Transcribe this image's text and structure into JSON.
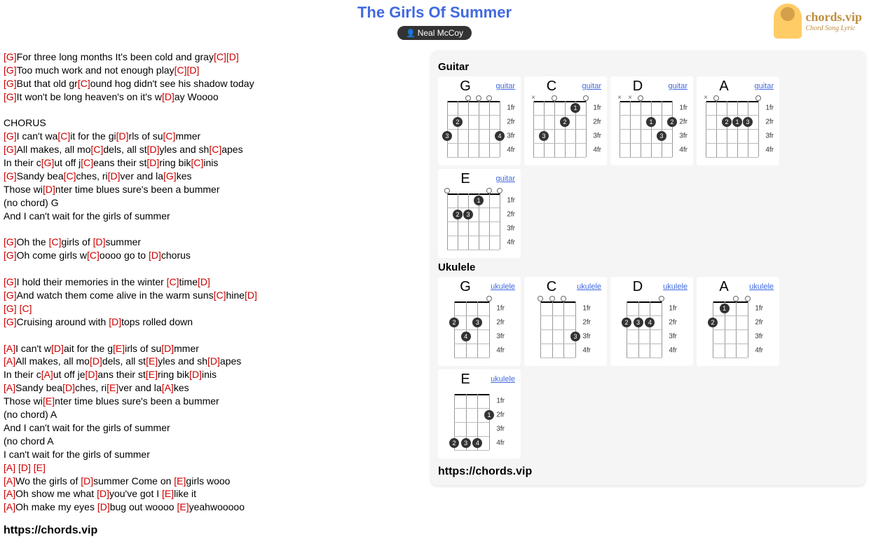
{
  "title": "The Girls Of Summer",
  "artist": "Neal McCoy",
  "logo": {
    "main": "chords.vip",
    "sub": "Chord Song Lyric"
  },
  "url": "https://chords.vip",
  "sections": {
    "guitar": "Guitar",
    "ukulele": "Ukulele"
  },
  "guitar_chords": [
    {
      "name": "G",
      "type": "guitar",
      "strings": 6,
      "markers": [
        {
          "s": 0,
          "f": 3,
          "n": "3"
        },
        {
          "s": 1,
          "f": 2,
          "n": "2"
        },
        {
          "s": 5,
          "f": 3,
          "n": "4"
        }
      ],
      "open": [
        2,
        3,
        4
      ],
      "mute": []
    },
    {
      "name": "C",
      "type": "guitar",
      "strings": 6,
      "markers": [
        {
          "s": 1,
          "f": 3,
          "n": "3"
        },
        {
          "s": 3,
          "f": 2,
          "n": "2"
        },
        {
          "s": 4,
          "f": 1,
          "n": "1"
        }
      ],
      "open": [
        2,
        5
      ],
      "mute": [
        0
      ]
    },
    {
      "name": "D",
      "type": "guitar",
      "strings": 6,
      "markers": [
        {
          "s": 3,
          "f": 2,
          "n": "1"
        },
        {
          "s": 4,
          "f": 3,
          "n": "3"
        },
        {
          "s": 5,
          "f": 2,
          "n": "2"
        }
      ],
      "open": [
        2
      ],
      "mute": [
        0,
        1
      ]
    },
    {
      "name": "A",
      "type": "guitar",
      "strings": 6,
      "markers": [
        {
          "s": 2,
          "f": 2,
          "n": "2"
        },
        {
          "s": 3,
          "f": 2,
          "n": "1"
        },
        {
          "s": 4,
          "f": 2,
          "n": "3"
        }
      ],
      "open": [
        1,
        5
      ],
      "mute": [
        0
      ]
    },
    {
      "name": "E",
      "type": "guitar",
      "strings": 6,
      "markers": [
        {
          "s": 1,
          "f": 2,
          "n": "2"
        },
        {
          "s": 2,
          "f": 2,
          "n": "3"
        },
        {
          "s": 3,
          "f": 1,
          "n": "1"
        }
      ],
      "open": [
        0,
        4,
        5
      ],
      "mute": []
    }
  ],
  "ukulele_chords": [
    {
      "name": "G",
      "type": "ukulele",
      "strings": 4,
      "markers": [
        {
          "s": 0,
          "f": 2,
          "n": "2"
        },
        {
          "s": 2,
          "f": 2,
          "n": "3"
        },
        {
          "s": 1,
          "f": 3,
          "n": "4"
        }
      ],
      "open": [
        3
      ],
      "mute": []
    },
    {
      "name": "C",
      "type": "ukulele",
      "strings": 4,
      "markers": [
        {
          "s": 3,
          "f": 3,
          "n": "3"
        }
      ],
      "open": [
        0,
        1,
        2
      ],
      "mute": []
    },
    {
      "name": "D",
      "type": "ukulele",
      "strings": 4,
      "markers": [
        {
          "s": 0,
          "f": 2,
          "n": "2"
        },
        {
          "s": 1,
          "f": 2,
          "n": "3"
        },
        {
          "s": 2,
          "f": 2,
          "n": "4"
        }
      ],
      "open": [
        3
      ],
      "mute": []
    },
    {
      "name": "A",
      "type": "ukulele",
      "strings": 4,
      "markers": [
        {
          "s": 0,
          "f": 2,
          "n": "2"
        },
        {
          "s": 1,
          "f": 1,
          "n": "1"
        }
      ],
      "open": [
        2,
        3
      ],
      "mute": []
    },
    {
      "name": "E",
      "type": "ukulele",
      "strings": 4,
      "markers": [
        {
          "s": 0,
          "f": 4,
          "n": "2"
        },
        {
          "s": 1,
          "f": 4,
          "n": "3"
        },
        {
          "s": 2,
          "f": 4,
          "n": "4"
        },
        {
          "s": 3,
          "f": 2,
          "n": "1"
        }
      ],
      "open": [],
      "mute": []
    }
  ],
  "fret_labels": [
    "1fr",
    "2fr",
    "3fr",
    "4fr"
  ],
  "lyrics": [
    [
      {
        "c": "G"
      },
      "For three long months It's been cold and gray",
      {
        "c": "C"
      },
      {
        "c": "D"
      }
    ],
    [
      {
        "c": "G"
      },
      "Too much work and not enough play",
      {
        "c": "C"
      },
      {
        "c": "D"
      }
    ],
    [
      {
        "c": "G"
      },
      "But that old gr",
      {
        "c": "C"
      },
      "ound hog didn't see his shadow today"
    ],
    [
      {
        "c": "G"
      },
      "It won't be long heaven's on it's w",
      {
        "c": "D"
      },
      "ay Woooo"
    ],
    [
      ""
    ],
    [
      "CHORUS"
    ],
    [
      {
        "c": "G"
      },
      "I can't wa",
      {
        "c": "C"
      },
      "it for the gi",
      {
        "c": "D"
      },
      "rls of su",
      {
        "c": "C"
      },
      "mmer"
    ],
    [
      {
        "c": "G"
      },
      "All makes, all mo",
      {
        "c": "C"
      },
      "dels, all st",
      {
        "c": "D"
      },
      "yles and sh",
      {
        "c": "C"
      },
      "apes"
    ],
    [
      "In their c",
      {
        "c": "G"
      },
      "ut off j",
      {
        "c": "C"
      },
      "eans their st",
      {
        "c": "D"
      },
      "ring bik",
      {
        "c": "C"
      },
      "inis"
    ],
    [
      {
        "c": "G"
      },
      "Sandy bea",
      {
        "c": "C"
      },
      "ches, ri",
      {
        "c": "D"
      },
      "ver and la",
      {
        "c": "G"
      },
      "kes"
    ],
    [
      "Those wi",
      {
        "c": "D"
      },
      "nter time blues sure's been a bummer"
    ],
    [
      "(no chord) G"
    ],
    [
      "And I can't wait for the girls of summer"
    ],
    [
      ""
    ],
    [
      {
        "c": "G"
      },
      "Oh the ",
      {
        "c": "C"
      },
      "girls of ",
      {
        "c": "D"
      },
      "summer"
    ],
    [
      {
        "c": "G"
      },
      "Oh come girls w",
      {
        "c": "C"
      },
      "oooo go to ",
      {
        "c": "D"
      },
      "chorus"
    ],
    [
      ""
    ],
    [
      {
        "c": "G"
      },
      "I hold their memories in the winter ",
      {
        "c": "C"
      },
      "time",
      {
        "c": "D"
      }
    ],
    [
      {
        "c": "G"
      },
      "And watch them come alive in the warm suns",
      {
        "c": "C"
      },
      "hine",
      {
        "c": "D"
      }
    ],
    [
      {
        "c": "G"
      },
      " ",
      {
        "c": "C"
      }
    ],
    [
      {
        "c": "G"
      },
      "Cruising around with ",
      {
        "c": "D"
      },
      "tops rolled down"
    ],
    [
      ""
    ],
    [
      {
        "c": "A"
      },
      "I can't w",
      {
        "c": "D"
      },
      "ait for the g",
      {
        "c": "E"
      },
      "irls of su",
      {
        "c": "D"
      },
      "mmer"
    ],
    [
      {
        "c": "A"
      },
      "All makes, all mo",
      {
        "c": "D"
      },
      "dels, all st",
      {
        "c": "E"
      },
      "yles and sh",
      {
        "c": "D"
      },
      "apes"
    ],
    [
      "In their c",
      {
        "c": "A"
      },
      "ut off je",
      {
        "c": "D"
      },
      "ans their st",
      {
        "c": "E"
      },
      "ring bik",
      {
        "c": "D"
      },
      "inis"
    ],
    [
      {
        "c": "A"
      },
      "Sandy bea",
      {
        "c": "D"
      },
      "ches, ri",
      {
        "c": "E"
      },
      "ver and la",
      {
        "c": "A"
      },
      "kes"
    ],
    [
      "Those wi",
      {
        "c": "E"
      },
      "nter time blues sure's been a bummer"
    ],
    [
      "(no chord) A"
    ],
    [
      "And I can't wait for the girls of summer"
    ],
    [
      "(no chord A"
    ],
    [
      "I can't wait for the girls of summer"
    ],
    [
      {
        "c": "A"
      },
      " ",
      {
        "c": "D"
      },
      " ",
      {
        "c": "E"
      }
    ],
    [
      {
        "c": "A"
      },
      "Wo the girls of ",
      {
        "c": "D"
      },
      "summer Come on ",
      {
        "c": "E"
      },
      "girls wooo"
    ],
    [
      {
        "c": "A"
      },
      "Oh show me what ",
      {
        "c": "D"
      },
      "you've got I ",
      {
        "c": "E"
      },
      "like it"
    ],
    [
      {
        "c": "A"
      },
      "Oh make my eyes ",
      {
        "c": "D"
      },
      "bug out woooo ",
      {
        "c": "E"
      },
      "yeahwooooo"
    ]
  ]
}
